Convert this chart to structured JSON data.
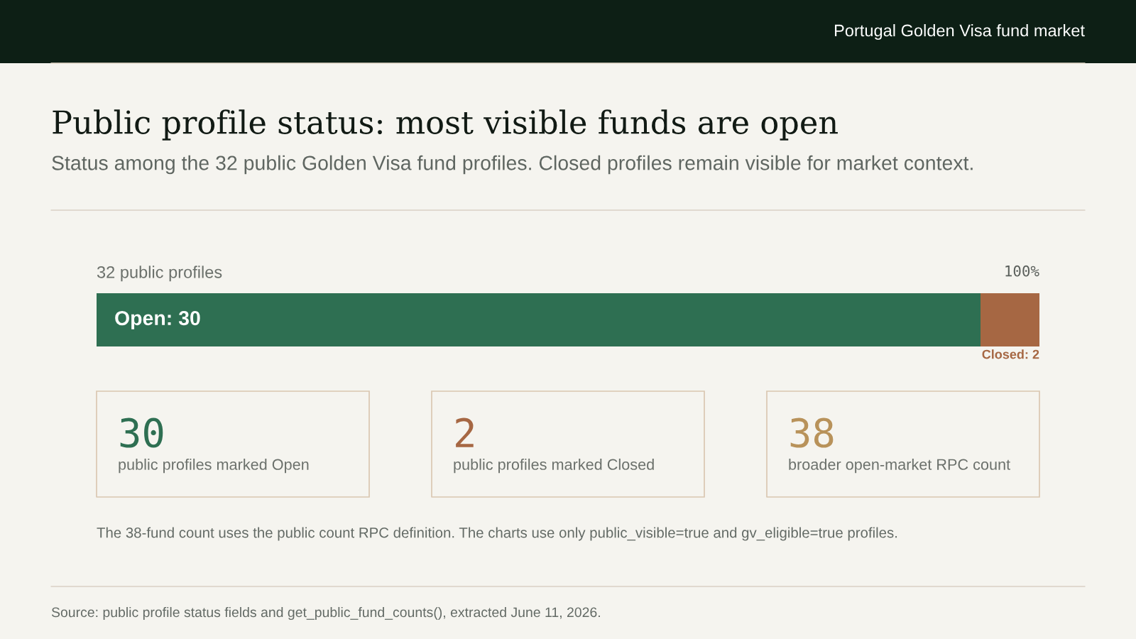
{
  "chart_data": [
    {
      "type": "bar",
      "orientation": "horizontal",
      "stacked": true,
      "title": "Public profile status: most visible funds are open",
      "subtitle": "Status among the 32 public Golden Visa fund profiles. Closed profiles remain visible for market context.",
      "annotations": [
        "Portugal Golden Visa fund market",
        "100%"
      ],
      "categories": [
        "32 public profiles"
      ],
      "series": [
        {
          "color": "#2e6f52",
          "values": [
            30
          ],
          "value_labels": [
            "Open: 30"
          ]
        },
        {
          "color": "#a66743",
          "values": [
            2
          ],
          "value_labels": [
            "Closed: 2"
          ]
        }
      ],
      "xlim": [
        0,
        32
      ]
    },
    {
      "type": "other",
      "categories": [
        "public profiles marked Open",
        "public profiles marked Closed",
        "broader open-market RPC count"
      ],
      "values": [
        30,
        2,
        38
      ],
      "colors": [
        "#2e6f52",
        "#a66743",
        "#b8925a"
      ],
      "data_labels": true,
      "annotations": [
        "The 38-fund count uses the public count RPC definition. The charts use only public_visible=true and gv_eligible=true profiles.",
        "Source: public profile status fields and get_public_fund_counts(), extracted June 11, 2026."
      ]
    }
  ]
}
